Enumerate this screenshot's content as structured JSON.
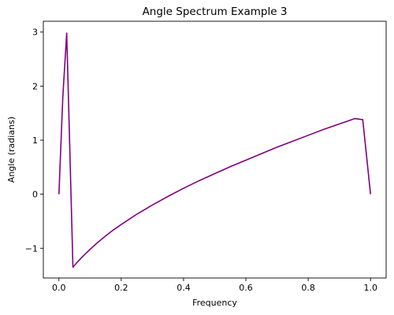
{
  "chart_data": {
    "type": "line",
    "title": "Angle Spectrum Example 3",
    "xlabel": "Frequency",
    "ylabel": "Angle (radians)",
    "xlim": [
      -0.05,
      1.05
    ],
    "ylim": [
      -1.55,
      3.2
    ],
    "xticks": [
      0.0,
      0.2,
      0.4,
      0.6,
      0.8,
      1.0
    ],
    "xtick_labels": [
      "0.0",
      "0.2",
      "0.4",
      "0.6",
      "0.8",
      "1.0"
    ],
    "yticks": [
      -1,
      0,
      1,
      2,
      3
    ],
    "ytick_labels": [
      "−1",
      "0",
      "1",
      "2",
      "3"
    ],
    "grid": false,
    "legend": "none",
    "series": [
      {
        "color": "#800080",
        "x": [
          0.0,
          0.0125,
          0.025,
          0.045,
          0.06,
          0.08,
          0.1,
          0.125,
          0.15,
          0.175,
          0.2,
          0.25,
          0.3,
          0.35,
          0.4,
          0.45,
          0.5,
          0.55,
          0.6,
          0.65,
          0.7,
          0.75,
          0.8,
          0.85,
          0.9,
          0.925,
          0.95,
          0.975,
          1.0
        ],
        "y": [
          0.0,
          1.8,
          2.98,
          -1.35,
          -1.25,
          -1.13,
          -1.02,
          -0.89,
          -0.77,
          -0.66,
          -0.56,
          -0.37,
          -0.2,
          -0.04,
          0.11,
          0.25,
          0.38,
          0.51,
          0.63,
          0.75,
          0.87,
          0.98,
          1.09,
          1.2,
          1.3,
          1.35,
          1.4,
          1.38,
          0.0
        ]
      }
    ]
  }
}
